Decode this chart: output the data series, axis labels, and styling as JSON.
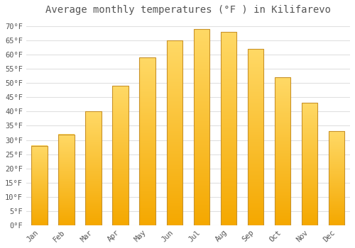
{
  "title": "Average monthly temperatures (°F ) in Kilifarevo",
  "months": [
    "Jan",
    "Feb",
    "Mar",
    "Apr",
    "May",
    "Jun",
    "Jul",
    "Aug",
    "Sep",
    "Oct",
    "Nov",
    "Dec"
  ],
  "values": [
    28,
    32,
    40,
    49,
    59,
    65,
    69,
    68,
    62,
    52,
    43,
    33
  ],
  "bar_color_bottom": "#F5A800",
  "bar_color_top": "#FFD966",
  "bar_edge_color": "#C8922A",
  "background_color": "#FFFFFF",
  "grid_color": "#E0E0E0",
  "text_color": "#555555",
  "ylim": [
    0,
    72
  ],
  "yticks": [
    0,
    5,
    10,
    15,
    20,
    25,
    30,
    35,
    40,
    45,
    50,
    55,
    60,
    65,
    70
  ],
  "title_fontsize": 10,
  "tick_fontsize": 7.5
}
